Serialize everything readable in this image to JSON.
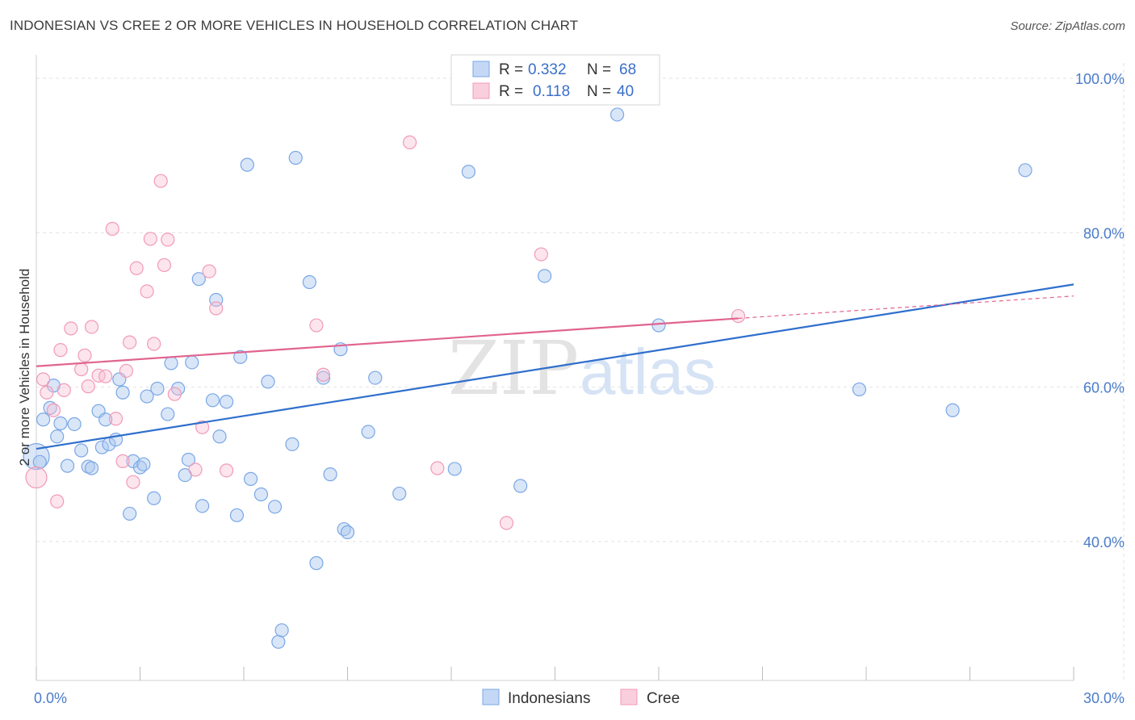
{
  "title": "INDONESIAN VS CREE 2 OR MORE VEHICLES IN HOUSEHOLD CORRELATION CHART",
  "source": "Source: ZipAtlas.com",
  "watermark": {
    "zip": "ZIP",
    "atlas": "atlas"
  },
  "chart_data": {
    "type": "scatter",
    "ylabel": "2 or more Vehicles in Household",
    "xlabel": "",
    "xlim": [
      0,
      30
    ],
    "ylim": [
      22,
      102
    ],
    "x_tick_labels": [
      {
        "value": 0,
        "label": "0.0%"
      },
      {
        "value": 30,
        "label": "30.0%"
      }
    ],
    "y_tick_labels": [
      {
        "value": 100,
        "label": "100.0%"
      },
      {
        "value": 80,
        "label": "80.0%"
      },
      {
        "value": 60,
        "label": "60.0%"
      },
      {
        "value": 40,
        "label": "40.0%"
      }
    ],
    "legend": [
      {
        "r_label": "R =",
        "r_value": "0.332",
        "n_label": "N =",
        "n_value": "68"
      },
      {
        "r_label": "R =",
        "r_value": "0.118",
        "n_label": "N =",
        "n_value": "40"
      }
    ],
    "series": [
      {
        "name": "Indonesians",
        "color": "#7aa7e6",
        "line_color": "#2f6fcc",
        "trend": {
          "x0": 0,
          "y0": 52,
          "x1": 30,
          "y1": 73.3
        },
        "points": [
          [
            0.0,
            51.0
          ],
          [
            0.2,
            55.8
          ],
          [
            0.4,
            57.3
          ],
          [
            0.5,
            60.2
          ],
          [
            0.6,
            53.6
          ],
          [
            0.7,
            55.3
          ],
          [
            0.9,
            49.8
          ],
          [
            1.1,
            55.2
          ],
          [
            1.3,
            51.8
          ],
          [
            1.5,
            49.7
          ],
          [
            1.8,
            56.9
          ],
          [
            1.9,
            52.2
          ],
          [
            2.0,
            55.8
          ],
          [
            2.1,
            52.6
          ],
          [
            2.3,
            53.2
          ],
          [
            2.4,
            61.0
          ],
          [
            2.5,
            59.3
          ],
          [
            2.7,
            43.6
          ],
          [
            2.8,
            50.4
          ],
          [
            3.0,
            49.6
          ],
          [
            3.2,
            58.8
          ],
          [
            3.4,
            45.6
          ],
          [
            3.5,
            59.8
          ],
          [
            3.8,
            56.5
          ],
          [
            3.9,
            63.1
          ],
          [
            4.1,
            59.8
          ],
          [
            4.3,
            48.6
          ],
          [
            4.4,
            50.6
          ],
          [
            4.5,
            63.2
          ],
          [
            4.7,
            74.0
          ],
          [
            4.8,
            44.6
          ],
          [
            5.1,
            58.3
          ],
          [
            5.2,
            71.3
          ],
          [
            5.3,
            53.6
          ],
          [
            5.5,
            58.1
          ],
          [
            5.8,
            43.4
          ],
          [
            5.9,
            63.9
          ],
          [
            6.1,
            88.8
          ],
          [
            6.2,
            48.1
          ],
          [
            6.5,
            46.1
          ],
          [
            6.7,
            60.7
          ],
          [
            6.9,
            44.5
          ],
          [
            7.0,
            27.0
          ],
          [
            7.1,
            28.5
          ],
          [
            7.4,
            52.6
          ],
          [
            7.5,
            89.7
          ],
          [
            7.9,
            73.6
          ],
          [
            8.1,
            37.2
          ],
          [
            8.3,
            61.2
          ],
          [
            8.5,
            48.7
          ],
          [
            8.8,
            64.9
          ],
          [
            8.9,
            41.6
          ],
          [
            9.0,
            41.2
          ],
          [
            9.6,
            54.2
          ],
          [
            9.8,
            61.2
          ],
          [
            10.5,
            46.2
          ],
          [
            12.1,
            49.4
          ],
          [
            12.5,
            87.9
          ],
          [
            14.0,
            47.2
          ],
          [
            14.7,
            74.4
          ],
          [
            16.8,
            95.3
          ],
          [
            18.0,
            68.0
          ],
          [
            23.8,
            59.7
          ],
          [
            26.5,
            57.0
          ],
          [
            28.6,
            88.1
          ],
          [
            0.1,
            50.3
          ],
          [
            3.1,
            50.0
          ],
          [
            1.6,
            49.5
          ]
        ]
      },
      {
        "name": "Cree",
        "color": "#f29ab8",
        "line_color": "#e0648f",
        "trend": {
          "x0": 0,
          "y0": 62.7,
          "x1": 20.3,
          "y1": 68.9,
          "x_dash_end": 30,
          "y_dash_end": 71.8
        },
        "points": [
          [
            0.0,
            48.3
          ],
          [
            0.2,
            61.0
          ],
          [
            0.3,
            59.3
          ],
          [
            0.5,
            57.0
          ],
          [
            0.6,
            45.2
          ],
          [
            0.7,
            64.8
          ],
          [
            0.8,
            59.6
          ],
          [
            1.0,
            67.6
          ],
          [
            1.3,
            62.3
          ],
          [
            1.4,
            64.1
          ],
          [
            1.5,
            60.1
          ],
          [
            1.6,
            67.8
          ],
          [
            1.8,
            61.5
          ],
          [
            2.0,
            61.4
          ],
          [
            2.2,
            80.5
          ],
          [
            2.3,
            55.9
          ],
          [
            2.5,
            50.4
          ],
          [
            2.6,
            62.1
          ],
          [
            2.7,
            65.8
          ],
          [
            2.8,
            47.7
          ],
          [
            2.9,
            75.4
          ],
          [
            3.2,
            72.4
          ],
          [
            3.3,
            79.2
          ],
          [
            3.4,
            65.6
          ],
          [
            3.6,
            86.7
          ],
          [
            3.7,
            75.8
          ],
          [
            3.8,
            79.1
          ],
          [
            4.0,
            59.1
          ],
          [
            4.6,
            49.3
          ],
          [
            4.8,
            54.8
          ],
          [
            5.0,
            75.0
          ],
          [
            5.2,
            70.2
          ],
          [
            5.5,
            49.2
          ],
          [
            8.1,
            68.0
          ],
          [
            8.3,
            61.6
          ],
          [
            10.8,
            91.7
          ],
          [
            11.6,
            49.5
          ],
          [
            13.6,
            42.4
          ],
          [
            14.6,
            77.2
          ],
          [
            20.3,
            69.2
          ]
        ]
      }
    ]
  }
}
